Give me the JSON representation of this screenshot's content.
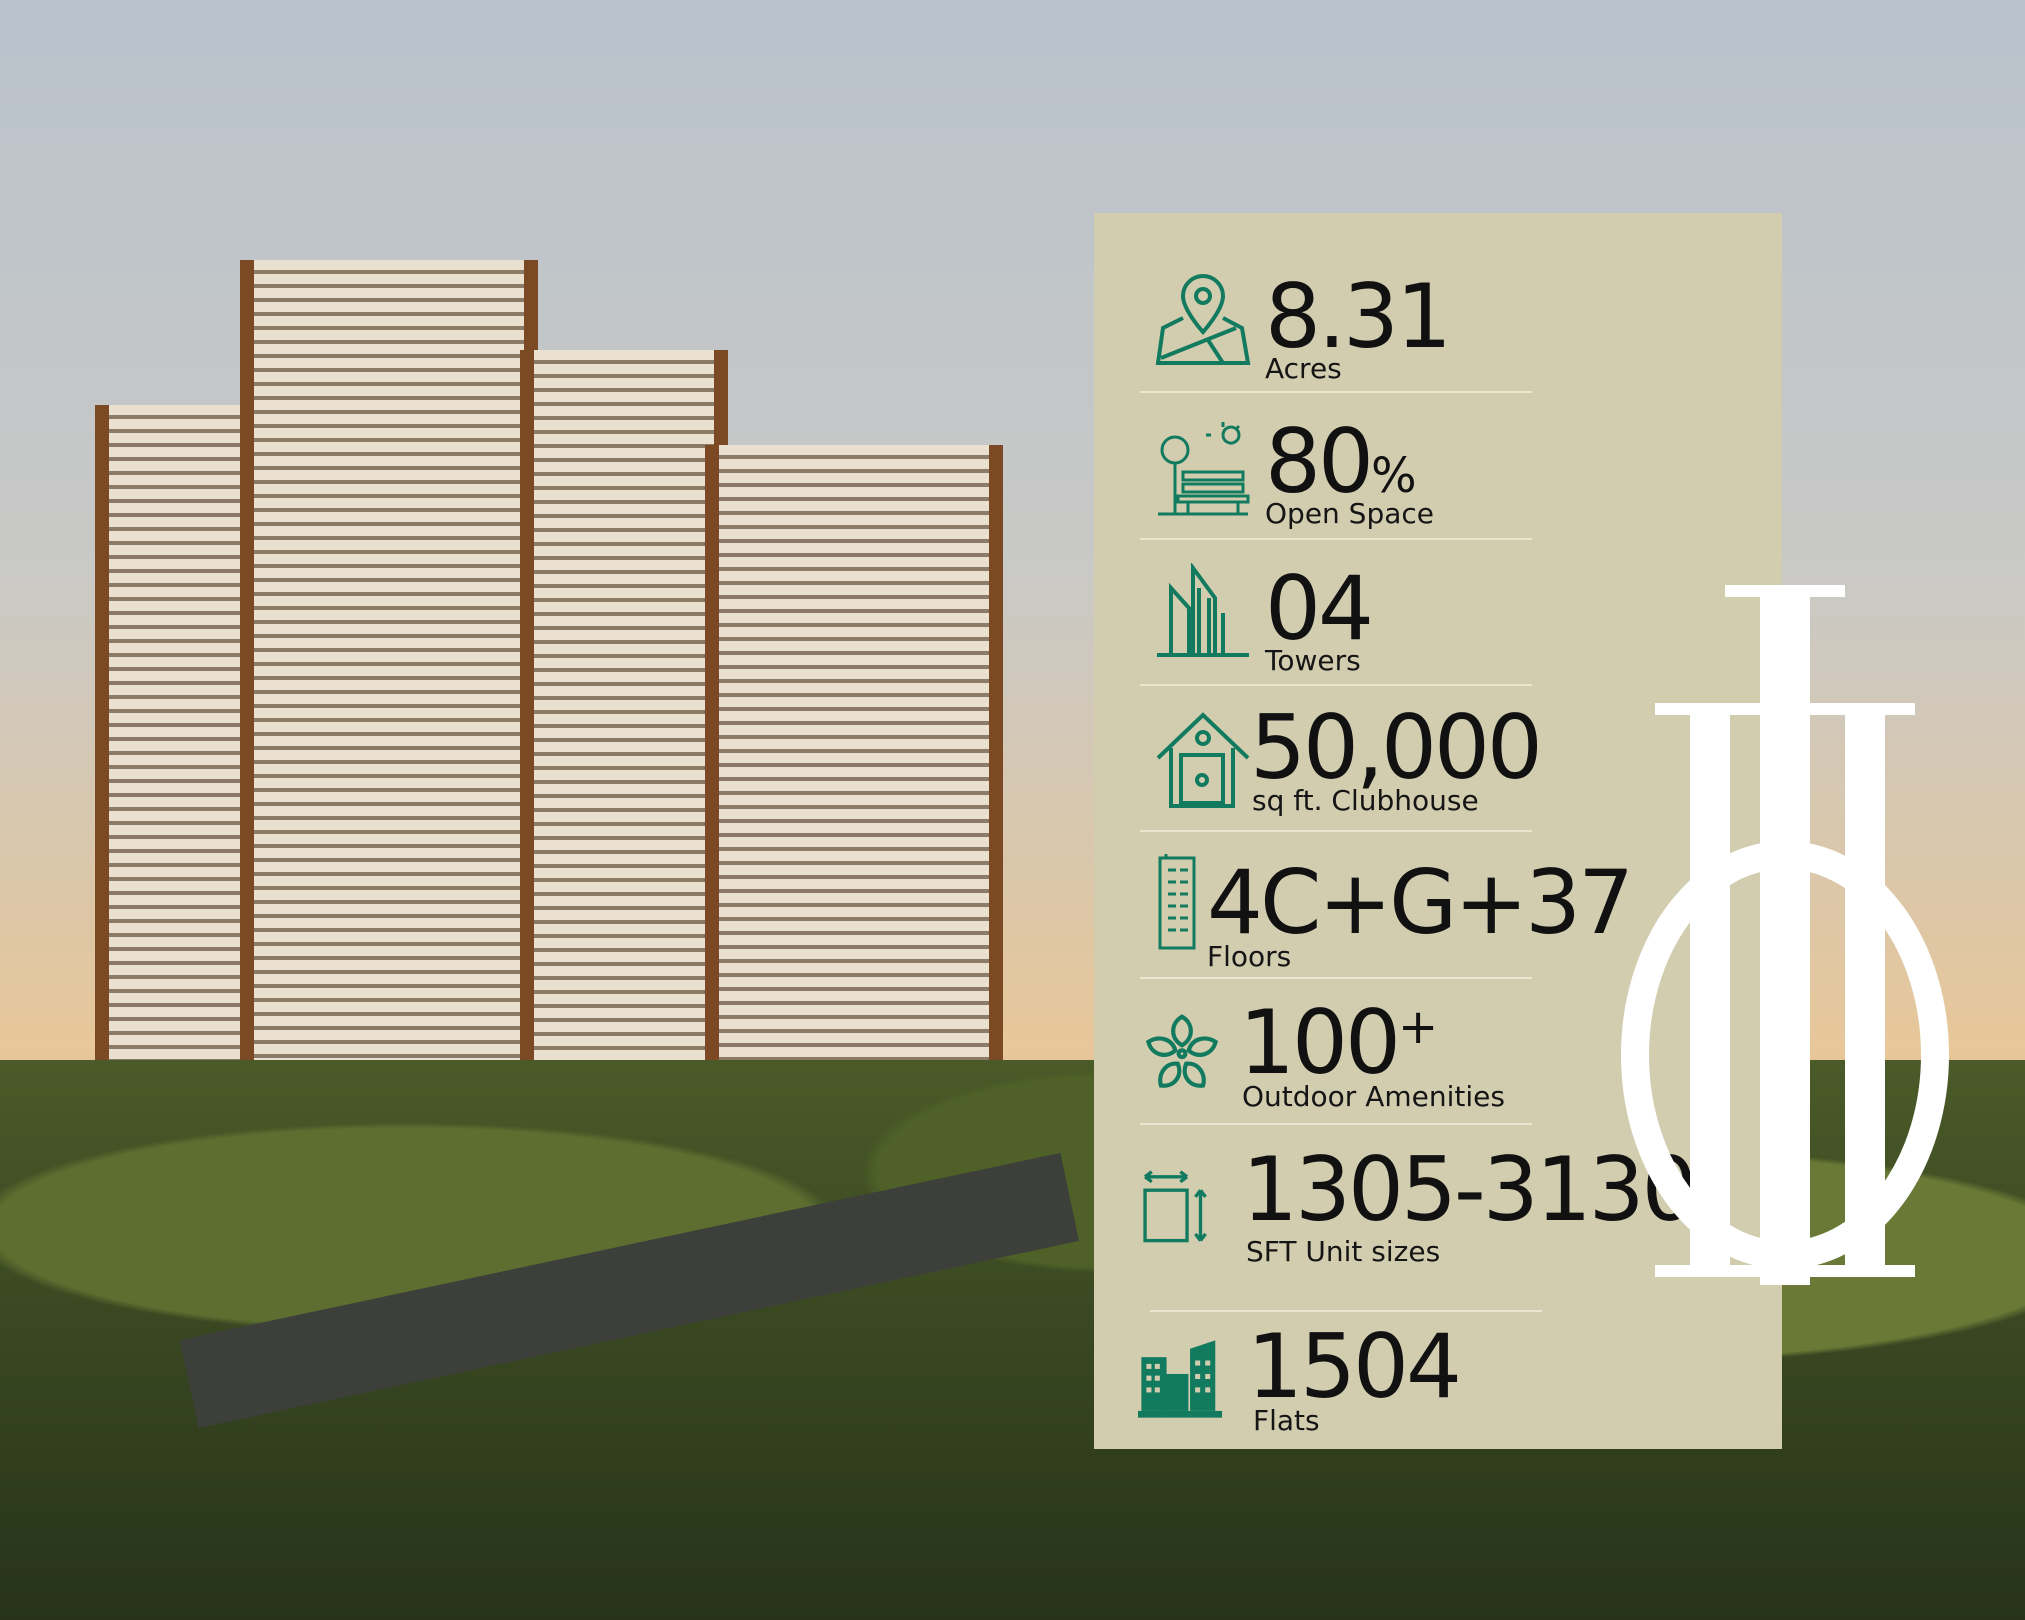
{
  "colors": {
    "panel": "#d3cdb0",
    "icon": "#127a5e",
    "text": "#111111",
    "logo": "#ffffff"
  },
  "stats": [
    {
      "icon": "map-pin-icon",
      "value": "8.31",
      "label": "Acres"
    },
    {
      "icon": "park-bench-icon",
      "value": "80",
      "suffix": "%",
      "label": "Open Space"
    },
    {
      "icon": "towers-icon",
      "value": "04",
      "label": "Towers"
    },
    {
      "icon": "clubhouse-icon",
      "value": "50,000",
      "label": "sq ft. Clubhouse"
    },
    {
      "icon": "skyscraper-icon",
      "value": "4C+G+37",
      "label": "Floors"
    },
    {
      "icon": "flower-icon",
      "value": "100",
      "suffix": "+",
      "label": "Outdoor Amenities"
    },
    {
      "icon": "unit-size-icon",
      "value": "1305-3130",
      "label": "SFT Unit sizes"
    },
    {
      "icon": "apartments-icon",
      "value": "1504",
      "label": "Flats"
    }
  ]
}
